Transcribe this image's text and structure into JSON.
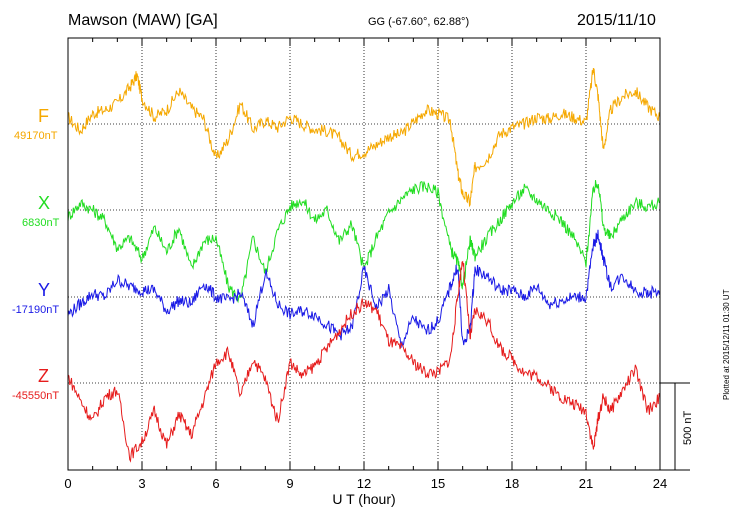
{
  "header": {
    "station": "Mawson (MAW)  [GA]",
    "coords": "GG (-67.60°,  62.88°)",
    "date": "2015/11/10"
  },
  "footer": {
    "plotted": "Plotted at 2015/12/11 01:30 UT"
  },
  "chart_data": {
    "type": "line",
    "title": "Mawson (MAW)  [GA]",
    "xlabel": "U T (hour)",
    "ylabel": "",
    "x_ticks": [
      "0",
      "3",
      "6",
      "9",
      "12",
      "15",
      "18",
      "21",
      "24"
    ],
    "xlim": [
      0,
      24
    ],
    "grid": true,
    "scale_bar": {
      "label": "500 nT",
      "value_nT": 500
    },
    "series": [
      {
        "name": "F",
        "baseline_label": "49170nT",
        "color": "#f5a800",
        "x": [
          0,
          0.5,
          1,
          1.5,
          2,
          2.5,
          2.8,
          3,
          3.5,
          4,
          4.5,
          5,
          5.5,
          6,
          6.5,
          7,
          7.5,
          8,
          8.5,
          9,
          9.5,
          10,
          10.5,
          11,
          11.5,
          12,
          12.5,
          13,
          13.5,
          14,
          14.5,
          15,
          15.5,
          15.8,
          16,
          16.3,
          16.5,
          17,
          17.5,
          18,
          18.5,
          19,
          19.5,
          20,
          20.5,
          21,
          21.3,
          21.5,
          21.7,
          22,
          22.5,
          23,
          23.5,
          24
        ],
        "y": [
          40,
          -40,
          60,
          80,
          120,
          210,
          280,
          150,
          40,
          80,
          190,
          90,
          30,
          -200,
          -90,
          120,
          -30,
          20,
          -20,
          40,
          0,
          -30,
          -40,
          -80,
          -180,
          -160,
          -120,
          -70,
          -60,
          10,
          80,
          60,
          20,
          -280,
          -400,
          -450,
          -250,
          -200,
          -60,
          -20,
          0,
          40,
          30,
          60,
          40,
          10,
          320,
          150,
          -150,
          80,
          160,
          190,
          100,
          40
        ]
      },
      {
        "name": "X",
        "baseline_label": "6830nT",
        "color": "#22dd22",
        "x": [
          0,
          0.5,
          1,
          1.5,
          2,
          2.5,
          3,
          3.5,
          4,
          4.5,
          5,
          5.5,
          6,
          6.5,
          7,
          7.5,
          8,
          8.5,
          9,
          9.5,
          10,
          10.5,
          11,
          11.5,
          12,
          12.5,
          13,
          13.5,
          14,
          14.5,
          15,
          15.5,
          15.8,
          16,
          16.3,
          16.5,
          17,
          17.5,
          18,
          18.5,
          19,
          19.5,
          20,
          20.5,
          21,
          21.3,
          21.5,
          21.7,
          22,
          22.5,
          23,
          23.5,
          24
        ],
        "y": [
          -40,
          40,
          0,
          -60,
          -220,
          -160,
          -280,
          -100,
          -240,
          -100,
          -340,
          -180,
          -160,
          -440,
          -520,
          -160,
          -360,
          -120,
          20,
          60,
          -60,
          0,
          -180,
          -80,
          -340,
          -160,
          -20,
          60,
          120,
          140,
          100,
          -220,
          -300,
          -440,
          -180,
          -260,
          -160,
          -60,
          40,
          120,
          60,
          0,
          -60,
          -160,
          -300,
          120,
          160,
          -100,
          -160,
          -40,
          40,
          20,
          40
        ]
      },
      {
        "name": "Y",
        "baseline_label": "-17190nT",
        "color": "#1a1ae6",
        "x": [
          0,
          0.5,
          1,
          1.5,
          2,
          2.5,
          3,
          3.5,
          4,
          4.5,
          5,
          5.5,
          6,
          6.5,
          7,
          7.5,
          8,
          8.5,
          9,
          9.5,
          10,
          10.5,
          11,
          11.5,
          12,
          12.5,
          13,
          13.5,
          14,
          14.5,
          15,
          15.5,
          15.8,
          16,
          16.3,
          16.5,
          17,
          17.5,
          18,
          18.5,
          19,
          19.5,
          20,
          20.5,
          21,
          21.3,
          21.5,
          21.7,
          22,
          22.5,
          23,
          23.5,
          24
        ],
        "y": [
          -100,
          -40,
          20,
          0,
          100,
          60,
          40,
          40,
          -80,
          -20,
          -40,
          80,
          0,
          -20,
          20,
          -160,
          140,
          -40,
          -100,
          -80,
          -100,
          -160,
          -220,
          -180,
          160,
          -60,
          40,
          -280,
          -120,
          -200,
          -140,
          60,
          180,
          -280,
          -180,
          160,
          120,
          40,
          40,
          0,
          60,
          -40,
          -20,
          0,
          0,
          300,
          360,
          220,
          60,
          120,
          40,
          20,
          40
        ]
      },
      {
        "name": "Z",
        "baseline_label": "-45550nT",
        "color": "#e61c1c",
        "x": [
          0,
          0.5,
          1,
          1.5,
          2,
          2.5,
          3,
          3.5,
          4,
          4.5,
          5,
          5.5,
          6,
          6.5,
          7,
          7.5,
          8,
          8.5,
          9,
          9.5,
          10,
          10.5,
          11,
          11.5,
          12,
          12.5,
          13,
          13.5,
          14,
          14.5,
          15,
          15.5,
          15.8,
          16,
          16.3,
          16.5,
          17,
          17.5,
          18,
          18.5,
          19,
          19.5,
          20,
          20.5,
          21,
          21.3,
          21.5,
          21.7,
          22,
          22.5,
          23,
          23.5,
          24
        ],
        "y": [
          40,
          -100,
          -220,
          -80,
          -40,
          -420,
          -340,
          -160,
          -360,
          -180,
          -300,
          -100,
          120,
          180,
          -80,
          140,
          20,
          -220,
          120,
          40,
          100,
          200,
          300,
          400,
          460,
          420,
          240,
          200,
          120,
          60,
          60,
          140,
          500,
          720,
          260,
          420,
          360,
          200,
          140,
          60,
          40,
          -20,
          -80,
          -120,
          -160,
          -380,
          -200,
          -80,
          -160,
          -40,
          80,
          -160,
          -80
        ]
      }
    ]
  }
}
